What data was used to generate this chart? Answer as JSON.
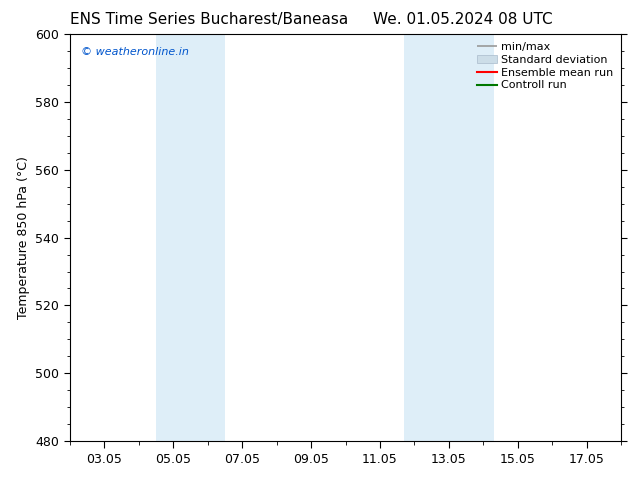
{
  "title_left": "ENS Time Series Bucharest/Baneasa",
  "title_right": "We. 01.05.2024 08 UTC",
  "ylabel": "Temperature 850 hPa (°C)",
  "watermark": "© weatheronline.in",
  "watermark_color": "#0055cc",
  "ylim": [
    480,
    600
  ],
  "yticks": [
    480,
    500,
    520,
    540,
    560,
    580,
    600
  ],
  "xlim": [
    1,
    17
  ],
  "xtick_labels": [
    "03.05",
    "05.05",
    "07.05",
    "09.05",
    "11.05",
    "13.05",
    "15.05",
    "17.05"
  ],
  "xtick_days": [
    2,
    4,
    6,
    8,
    10,
    12,
    14,
    16
  ],
  "shaded_bands": [
    {
      "x_start_day": 3.5,
      "x_end_day": 5.5
    },
    {
      "x_start_day": 10.7,
      "x_end_day": 12.0
    },
    {
      "x_start_day": 12.0,
      "x_end_day": 13.2
    }
  ],
  "shaded_color": "#deeef8",
  "background_color": "#ffffff",
  "legend_entries": [
    {
      "label": "min/max",
      "color": "#aaaaaa",
      "lw": 1.5
    },
    {
      "label": "Standard deviation",
      "color": "#ccdde8",
      "lw": 8
    },
    {
      "label": "Ensemble mean run",
      "color": "#ff0000",
      "lw": 1.5
    },
    {
      "label": "Controll run",
      "color": "#007700",
      "lw": 1.5
    }
  ],
  "title_fontsize": 11,
  "tick_fontsize": 9,
  "label_fontsize": 9,
  "legend_fontsize": 8,
  "watermark_fontsize": 8
}
